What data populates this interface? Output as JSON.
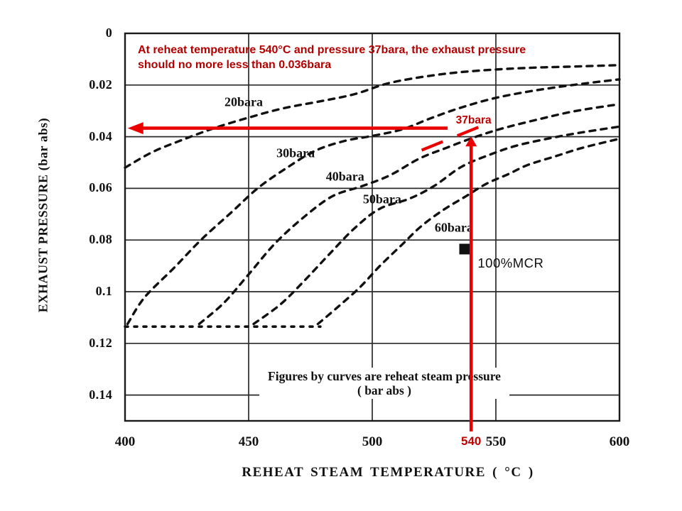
{
  "page": {
    "background": "#ffffff"
  },
  "chart_data": {
    "type": "line",
    "title": "",
    "xlabel": "REHEAT STEAM TEMPERATURE   ( °C )",
    "ylabel": "EXHAUST PRESSURE  (bar abs)",
    "xlim": [
      400,
      600
    ],
    "ylim": [
      0,
      0.15
    ],
    "y_direction": "down",
    "grid": "on",
    "legend_note": "curve labels printed beside curves",
    "x_ticks": [
      {
        "label": "400",
        "value": 400,
        "highlight": false
      },
      {
        "label": "450",
        "value": 450,
        "highlight": false
      },
      {
        "label": "500",
        "value": 500,
        "highlight": false
      },
      {
        "label": "540",
        "value": 540,
        "highlight": true
      },
      {
        "label": "550",
        "value": 550,
        "highlight": false
      },
      {
        "label": "600",
        "value": 600,
        "highlight": false
      }
    ],
    "y_ticks": [
      {
        "label": "0",
        "value": 0
      },
      {
        "label": "0.02",
        "value": 0.02
      },
      {
        "label": "0.04",
        "value": 0.04
      },
      {
        "label": "0.06",
        "value": 0.06
      },
      {
        "label": "0.08",
        "value": 0.08
      },
      {
        "label": "0.1",
        "value": 0.1
      },
      {
        "label": "0.12",
        "value": 0.12
      },
      {
        "label": "0.14",
        "value": 0.14
      }
    ],
    "grid_x_values": [
      450,
      500,
      550
    ],
    "grid_y_values": [
      0.02,
      0.04,
      0.06,
      0.08,
      0.1,
      0.12,
      0.14
    ],
    "flat_segment": {
      "pressure": 0.1135,
      "from_temp": 400,
      "to_temp": 479
    },
    "series": [
      {
        "name": "20bara",
        "label_at": [
          448,
          0.0266
        ],
        "points": [
          [
            400,
            0.052
          ],
          [
            411,
            0.046
          ],
          [
            423,
            0.0413
          ],
          [
            436,
            0.0367
          ],
          [
            450,
            0.0326
          ],
          [
            464,
            0.029
          ],
          [
            479,
            0.0263
          ],
          [
            493,
            0.0235
          ],
          [
            507,
            0.0192
          ],
          [
            525,
            0.0162
          ],
          [
            542,
            0.0145
          ],
          [
            562,
            0.0134
          ],
          [
            579,
            0.0129
          ],
          [
            600,
            0.0123
          ]
        ]
      },
      {
        "name": "30bara",
        "label_at": [
          469,
          0.0465
        ],
        "points": [
          [
            401,
            0.1125
          ],
          [
            408,
            0.1021
          ],
          [
            420,
            0.0906
          ],
          [
            431,
            0.0797
          ],
          [
            443,
            0.0693
          ],
          [
            454,
            0.0597
          ],
          [
            466,
            0.0517
          ],
          [
            477,
            0.0454
          ],
          [
            489,
            0.0416
          ],
          [
            500,
            0.0397
          ],
          [
            512,
            0.0372
          ],
          [
            523,
            0.0331
          ],
          [
            535,
            0.029
          ],
          [
            549,
            0.0252
          ],
          [
            564,
            0.0224
          ],
          [
            581,
            0.02
          ],
          [
            600,
            0.0178
          ]
        ]
      },
      {
        "name": "40bara",
        "label_at": [
          489,
          0.0556
        ],
        "points": [
          [
            430,
            0.1125
          ],
          [
            440,
            0.1043
          ],
          [
            450,
            0.0933
          ],
          [
            461,
            0.081
          ],
          [
            473,
            0.0706
          ],
          [
            484,
            0.063
          ],
          [
            496,
            0.0591
          ],
          [
            507,
            0.055
          ],
          [
            519,
            0.0485
          ],
          [
            530,
            0.0443
          ],
          [
            542,
            0.04
          ],
          [
            553,
            0.0367
          ],
          [
            568,
            0.0331
          ],
          [
            582,
            0.0301
          ],
          [
            600,
            0.0274
          ]
        ]
      },
      {
        "name": "50bara",
        "label_at": [
          504,
          0.0643
        ],
        "points": [
          [
            452,
            0.1125
          ],
          [
            463,
            0.1048
          ],
          [
            473,
            0.0953
          ],
          [
            483,
            0.0851
          ],
          [
            493,
            0.0753
          ],
          [
            503,
            0.0679
          ],
          [
            515,
            0.064
          ],
          [
            525,
            0.0591
          ],
          [
            536,
            0.0517
          ],
          [
            548,
            0.0468
          ],
          [
            559,
            0.0433
          ],
          [
            574,
            0.0402
          ],
          [
            585,
            0.0383
          ],
          [
            600,
            0.0361
          ]
        ]
      },
      {
        "name": "60bara",
        "label_at": [
          533,
          0.0753
        ],
        "points": [
          [
            478,
            0.1125
          ],
          [
            486,
            0.106
          ],
          [
            495,
            0.0983
          ],
          [
            503,
            0.0901
          ],
          [
            512,
            0.0818
          ],
          [
            520,
            0.0745
          ],
          [
            529,
            0.0682
          ],
          [
            538,
            0.063
          ],
          [
            546,
            0.0583
          ],
          [
            555,
            0.0545
          ],
          [
            563,
            0.0509
          ],
          [
            574,
            0.0476
          ],
          [
            585,
            0.0443
          ],
          [
            600,
            0.0408
          ]
        ]
      }
    ],
    "footnote_line1": "Figures by curves are reheat steam pressure",
    "footnote_line2": "( bar abs )",
    "mcr_label": "100%MCR",
    "mcr_label_at": [
      556,
      0.089
    ],
    "mcr_marker_at": [
      537.5,
      0.0835
    ]
  },
  "annotations": {
    "text_color": "#b40000",
    "arrow_color": "#ea0000",
    "label_color": "#c00000",
    "note_line1": "At reheat temperature 540°C and pressure 37bara, the exhaust pressure",
    "note_line2": "should no more less than 0.036bara",
    "label_37bara": "37bara",
    "label_37bara_at": [
      541,
      0.0337
    ],
    "h_arrow": {
      "pressure": 0.0367,
      "from_temp": 530.5,
      "to_temp": 400.5
    },
    "v_arrow": {
      "temp": 540,
      "from_pressure": 0.1541,
      "to_pressure": 0.0399
    },
    "interp_dash": {
      "from": [
        520,
        0.0452
      ],
      "to": [
        543,
        0.0363
      ]
    }
  }
}
